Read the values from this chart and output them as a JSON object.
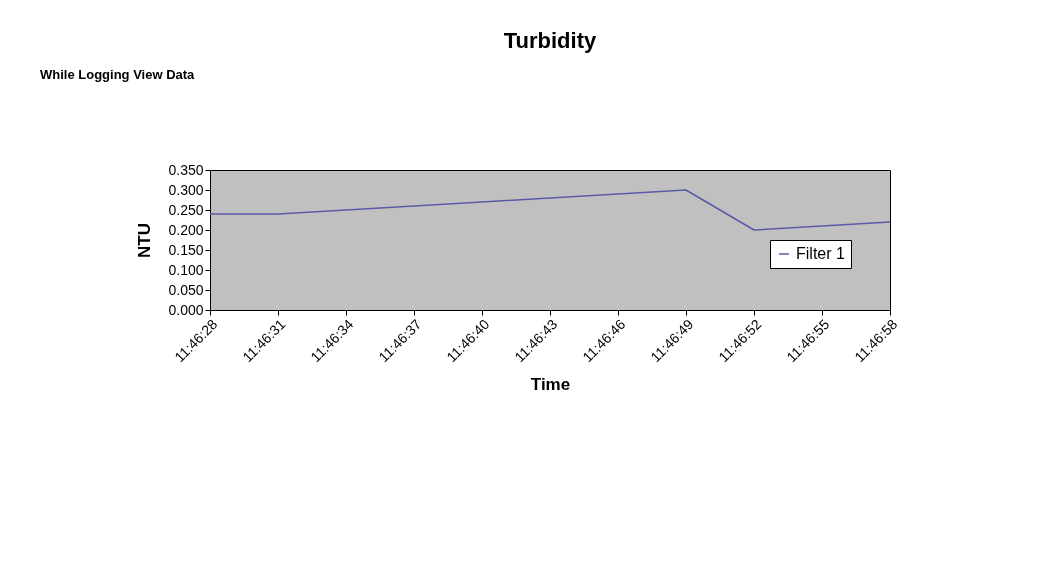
{
  "chart_data": {
    "type": "line",
    "title": "Turbidity",
    "xlabel": "Time",
    "ylabel": "NTU",
    "categories": [
      "11:46:28",
      "11:46:31",
      "11:46:34",
      "11:46:37",
      "11:46:40",
      "11:46:43",
      "11:46:46",
      "11:46:49",
      "11:46:52",
      "11:46:55",
      "11:46:58"
    ],
    "series": [
      {
        "name": "Filter 1",
        "color": "#5a5aa8",
        "values": [
          0.24,
          0.24,
          0.25,
          0.26,
          0.27,
          0.28,
          0.29,
          0.3,
          0.2,
          0.21,
          0.22
        ]
      }
    ],
    "ylim": [
      0,
      0.35
    ],
    "yticks": [
      {
        "value": 0,
        "label": "0.000"
      },
      {
        "value": 0.05,
        "label": "0.050"
      },
      {
        "value": 0.1,
        "label": "0.100"
      },
      {
        "value": 0.15,
        "label": "0.150"
      },
      {
        "value": 0.2,
        "label": "0.200"
      },
      {
        "value": 0.25,
        "label": "0.250"
      },
      {
        "value": 0.3,
        "label": "0.300"
      },
      {
        "value": 0.35,
        "label": "0.350"
      }
    ],
    "grid": false,
    "legend": "right",
    "marker": "none",
    "line_style": "solid",
    "annotations": [
      "While Logging View Data"
    ]
  }
}
